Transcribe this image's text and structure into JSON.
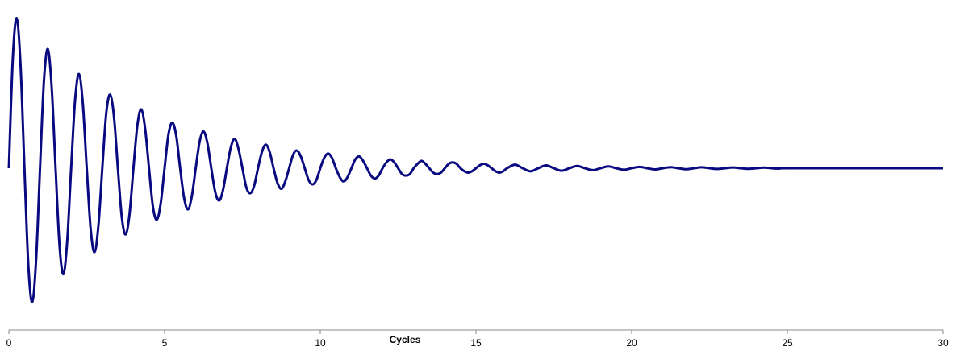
{
  "chart_data": {
    "type": "line",
    "x_label": "Cycles",
    "color": "#0a0a80",
    "xlim": [
      0,
      30
    ],
    "xticks": [
      0,
      5,
      10,
      15,
      20,
      25,
      30
    ],
    "ylim": [
      -1.1,
      1.1
    ],
    "x": [
      0,
      0.125,
      0.25,
      0.375,
      0.5,
      0.625,
      0.75,
      0.875,
      1,
      1.125,
      1.25,
      1.375,
      1.5,
      1.625,
      1.75,
      1.875,
      2,
      2.125,
      2.25,
      2.375,
      2.5,
      2.625,
      2.75,
      2.875,
      3,
      3.125,
      3.25,
      3.375,
      3.5,
      3.625,
      3.75,
      3.875,
      4,
      4.125,
      4.25,
      4.375,
      4.5,
      4.625,
      4.75,
      4.875,
      5,
      5.125,
      5.25,
      5.375,
      5.5,
      5.625,
      5.75,
      5.875,
      6,
      6.125,
      6.25,
      6.375,
      6.5,
      6.625,
      6.75,
      6.875,
      7,
      7.125,
      7.25,
      7.375,
      7.5,
      7.625,
      7.75,
      7.875,
      8,
      8.125,
      8.25,
      8.375,
      8.5,
      8.625,
      8.75,
      8.875,
      9,
      9.125,
      9.25,
      9.375,
      9.5,
      9.625,
      9.75,
      9.875,
      10,
      10.125,
      10.25,
      10.375,
      10.5,
      10.625,
      10.75,
      10.875,
      11,
      11.125,
      11.25,
      11.375,
      11.5,
      11.625,
      11.75,
      11.875,
      12,
      12.125,
      12.25,
      12.375,
      12.5,
      12.625,
      12.75,
      12.875,
      13,
      13.125,
      13.25,
      13.375,
      13.5,
      13.625,
      13.75,
      13.875,
      14,
      14.125,
      14.25,
      14.375,
      14.5,
      14.625,
      14.75,
      14.875,
      15,
      15.125,
      15.25,
      15.375,
      15.5,
      15.625,
      15.75,
      15.875,
      16,
      16.25,
      16.5,
      16.75,
      17,
      17.25,
      17.5,
      17.75,
      18,
      18.25,
      18.5,
      18.75,
      19,
      19.25,
      19.5,
      19.75,
      20,
      20.25,
      20.5,
      20.75,
      21,
      21.25,
      21.5,
      21.75,
      22,
      22.25,
      22.5,
      22.75,
      23,
      23.25,
      23.5,
      23.75,
      24,
      24.25,
      24.5,
      24.75,
      25,
      30
    ],
    "values": [
      0,
      0.74,
      1.02,
      0.7,
      0,
      -0.66,
      -0.91,
      -0.62,
      0,
      0.59,
      0.81,
      0.55,
      0,
      -0.52,
      -0.72,
      -0.49,
      0,
      0.46,
      0.64,
      0.44,
      0,
      -0.41,
      -0.57,
      -0.39,
      0,
      0.37,
      0.5,
      0.35,
      0,
      -0.33,
      -0.45,
      -0.31,
      0,
      0.29,
      0.4,
      0.27,
      0,
      -0.26,
      -0.35,
      -0.24,
      0,
      0.23,
      0.31,
      0.22,
      0,
      -0.2,
      -0.28,
      -0.19,
      0,
      0.18,
      0.25,
      0.17,
      0,
      -0.16,
      -0.22,
      -0.15,
      0,
      0.14,
      0.2,
      0.13,
      0,
      -0.13,
      -0.17,
      -0.12,
      0,
      0.11,
      0.16,
      0.11,
      0,
      -0.1,
      -0.14,
      -0.09,
      0,
      0.09,
      0.12,
      0.08,
      0,
      -0.08,
      -0.11,
      -0.08,
      0,
      0.07,
      0.1,
      0.07,
      0,
      -0.06,
      -0.09,
      -0.06,
      0,
      0.06,
      0.08,
      0.05,
      0,
      -0.05,
      -0.07,
      -0.05,
      0,
      0.04,
      0.06,
      0.04,
      0,
      -0.04,
      -0.05,
      -0.04,
      0,
      0.03,
      0.05,
      0.03,
      0,
      -0.03,
      -0.04,
      -0.03,
      0,
      0.03,
      0.04,
      0.03,
      0,
      -0.02,
      -0.03,
      -0.02,
      0,
      0.02,
      0.03,
      0.02,
      0,
      -0.02,
      -0.03,
      -0.02,
      0,
      0.024,
      0,
      -0.021,
      0,
      0.019,
      0,
      -0.017,
      0,
      0.015,
      0,
      -0.013,
      0,
      0.012,
      0,
      -0.01,
      0,
      0.009,
      0,
      -0.008,
      0,
      0.007,
      0,
      -0.007,
      0,
      0.006,
      0,
      -0.005,
      0,
      0.005,
      0,
      -0.004,
      0,
      0.004,
      0,
      -0.003,
      0,
      0
    ]
  }
}
